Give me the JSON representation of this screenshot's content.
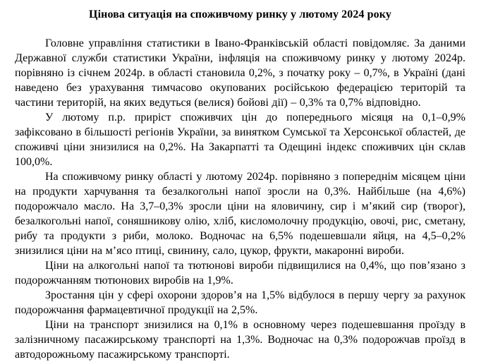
{
  "document": {
    "title": "Цінова ситуація на споживчому ринку у лютому 2024 року",
    "paragraphs": [
      "Головне управління статистики в Івано-Франківській області повідомляє. За даними Державної служби статистики України, інфляція на споживчому ринку у лютому 2024р. порівняно із січнем 2024р. в області становила 0,2%, з початку року – 0,7%, в Україні (дані наведено без урахування тимчасово окупованих російською федерацією територій та частини територій, на яких ведуться (велися) бойові дії) – 0,3% та 0,7% відповідно.",
      "У лютому п.р. приріст споживчих цін до попереднього місяця на 0,1–0,9% зафіксовано в більшості регіонів України, за винятком Сумської та Херсонської областей, де споживчі ціни знизилися на 0,2%. На Закарпатті та Одещині індекс споживчих цін склав 100,0%.",
      "На споживчому ринку області у лютому 2024р. порівняно з попереднім місяцем ціни на продукти харчування та безалкогольні напої зросли на 0,3%. Найбільше (на 4,6%) подорожчало масло. На 3,7–0,3% зросли ціни на яловичину, сир і мʼякий сир (творог), безалкогольні напої, соняшникову олію, хліб, кисломолочну продукцію, овочі, рис, сметану, рибу та продукти з риби, молоко. Водночас на 6,5% подешевшали яйця, на 4,5–0,2% знизилися ціни на мʼясо птиці, свинину, сало, цукор, фрукти, макаронні вироби.",
      "Ціни на алкогольні напої та тютюнові вироби підвищилися на 0,4%, що повʼязано з подорожчанням тютюнових виробів на 1,9%.",
      "Зростання цін у сфері охорони здоровʼя на 1,5% відбулося в першу чергу за рахунок подорожчання фармацевтичної продукції на 2,5%.",
      "Ціни на транспорт знизилися на 0,1% в основному через подешевшання проїзду в залізничному пасажирському транспорті на 1,3%. Водночас на 0,3% подорожчав проїзд в автодорожньому пасажирському транспорті."
    ],
    "text_color": "#000000",
    "background_color": "#ffffff"
  }
}
